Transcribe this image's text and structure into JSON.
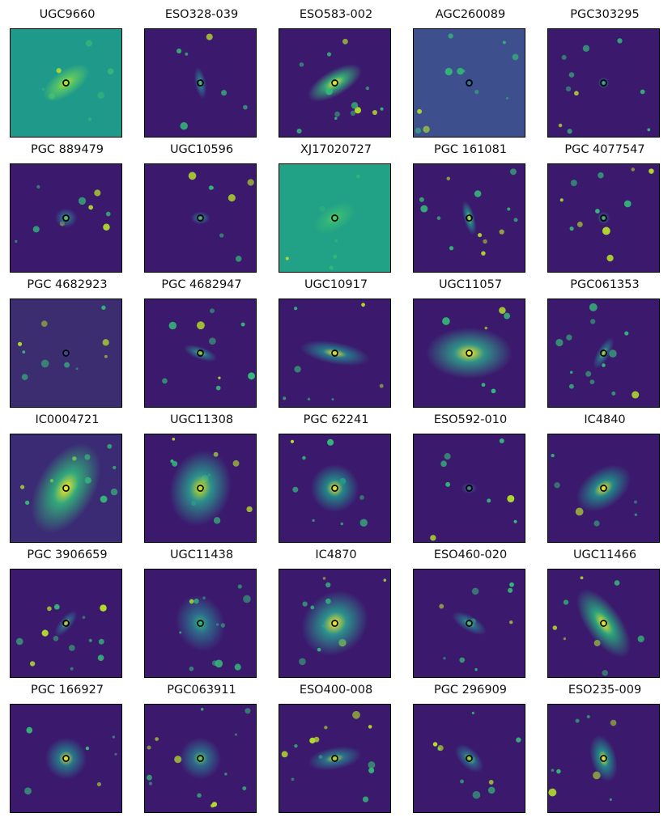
{
  "colormap": {
    "low": "#440154",
    "mid": "#21908d",
    "high": "#fde725",
    "marker": "#000000"
  },
  "panels": [
    {
      "label": "UGC9660",
      "bg": "#1f9a8a"
    },
    {
      "label": "ESO328-039",
      "bg": "#3b1a6e"
    },
    {
      "label": "ESO583-002",
      "bg": "#3b1a6e"
    },
    {
      "label": "AGC260089",
      "bg": "#3d4f8c"
    },
    {
      "label": "PGC303295",
      "bg": "#3b1a6e"
    },
    {
      "label": "PGC 889479",
      "bg": "#3b1a6e"
    },
    {
      "label": "UGC10596",
      "bg": "#3b1a6e"
    },
    {
      "label": "XJ17020727",
      "bg": "#21a185"
    },
    {
      "label": "PGC 161081",
      "bg": "#3b1a6e"
    },
    {
      "label": "PGC 4077547",
      "bg": "#3b1a6e"
    },
    {
      "label": "PGC 4682923",
      "bg": "#3b2d70"
    },
    {
      "label": "PGC 4682947",
      "bg": "#3b1a6e"
    },
    {
      "label": "UGC10917",
      "bg": "#3b1a6e"
    },
    {
      "label": "UGC11057",
      "bg": "#3b1a6e"
    },
    {
      "label": "PGC061353",
      "bg": "#3b1a6e"
    },
    {
      "label": "IC0004721",
      "bg": "#3b2a74"
    },
    {
      "label": "UGC11308",
      "bg": "#3b1a6e"
    },
    {
      "label": "PGC 62241",
      "bg": "#3b1a6e"
    },
    {
      "label": "ESO592-010",
      "bg": "#3b1a6e"
    },
    {
      "label": "IC4840",
      "bg": "#3b1a6e"
    },
    {
      "label": "PGC 3906659",
      "bg": "#3b1a6e"
    },
    {
      "label": "UGC11438",
      "bg": "#3b1a6e"
    },
    {
      "label": "IC4870",
      "bg": "#3b1a6e"
    },
    {
      "label": "ESO460-020",
      "bg": "#3b1a6e"
    },
    {
      "label": "UGC11466",
      "bg": "#3b1a6e"
    },
    {
      "label": "PGC 166927",
      "bg": "#3b1a6e"
    },
    {
      "label": "PGC063911",
      "bg": "#3b1a6e"
    },
    {
      "label": "ESO400-008",
      "bg": "#3b1a6e"
    },
    {
      "label": "PGC 296909",
      "bg": "#3b1a6e"
    },
    {
      "label": "ESO235-009",
      "bg": "#3b1a6e"
    }
  ]
}
